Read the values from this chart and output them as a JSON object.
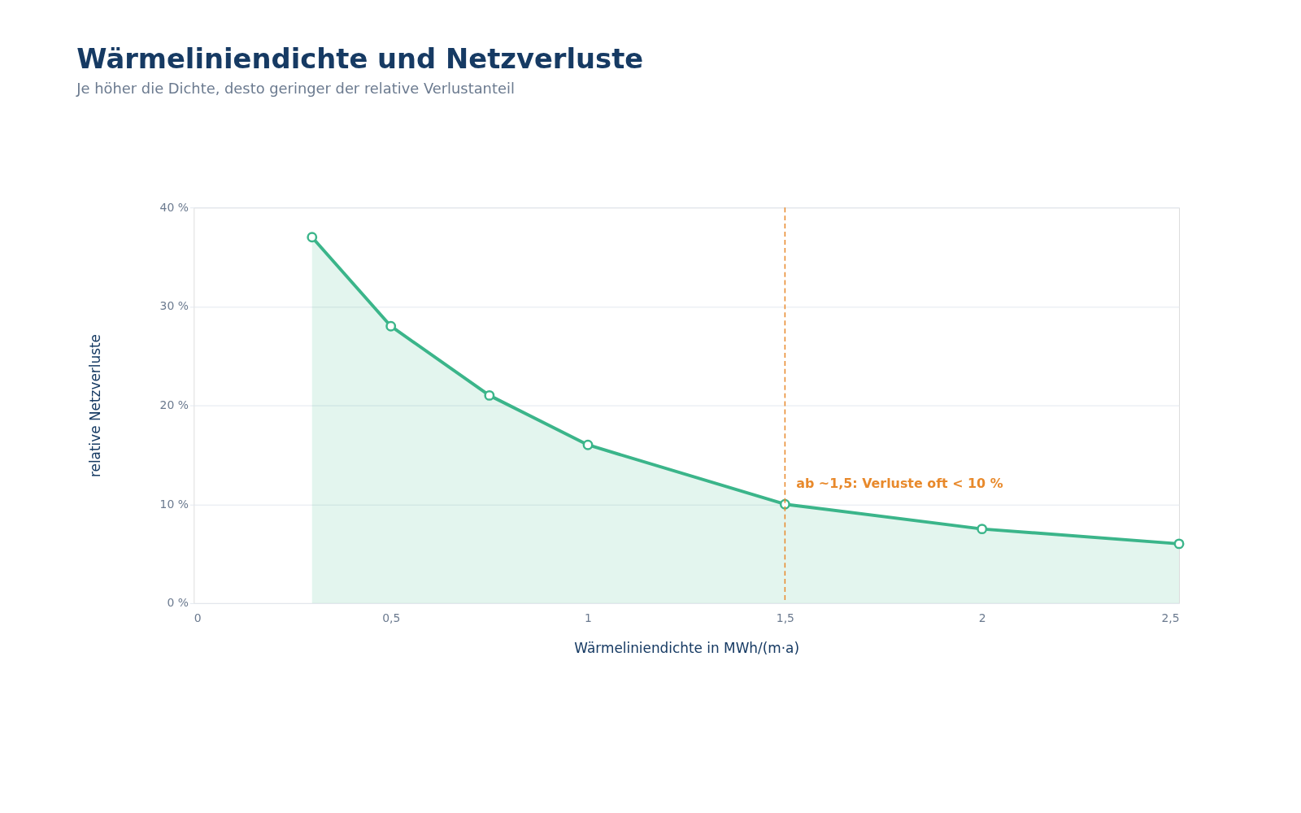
{
  "chart_data": {
    "type": "area",
    "title": "Wärmeliniendichte und Netzverluste",
    "subtitle": "Je höher die Dichte, desto geringer der relative Verlustanteil",
    "xlabel": "Wärmeliniendichte in MWh/(m·a)",
    "ylabel": "relative Netzverluste",
    "x": [
      0.3,
      0.5,
      0.75,
      1,
      1.5,
      2,
      2.5
    ],
    "series": [
      {
        "color": "#3bb58a",
        "values": [
          37,
          28,
          21,
          16,
          10,
          7.5,
          6
        ]
      }
    ],
    "xlim": [
      0,
      2.5
    ],
    "xticks": [
      0,
      {
        "value": 0.5,
        "label": "0,5"
      },
      1,
      {
        "value": 1.5,
        "label": "1,5"
      },
      2,
      {
        "value": 2.5,
        "label": "2,5"
      }
    ],
    "ylim": [
      0,
      40
    ],
    "yticks": [
      {
        "value": 0,
        "label": "0 %"
      },
      {
        "value": 10,
        "label": "10 %"
      },
      {
        "value": 20,
        "label": "20 %"
      },
      {
        "value": 30,
        "label": "30 %"
      },
      {
        "value": 40,
        "label": "40 %"
      }
    ],
    "ref_lines": [
      {
        "axis": "x",
        "value": 1.5,
        "label": "ab ~1,5: Verluste oft < 10 %",
        "color": "#e8892b",
        "line_style": "dashed"
      }
    ],
    "grid": "y",
    "marker": "circle",
    "line_style": "solid"
  }
}
